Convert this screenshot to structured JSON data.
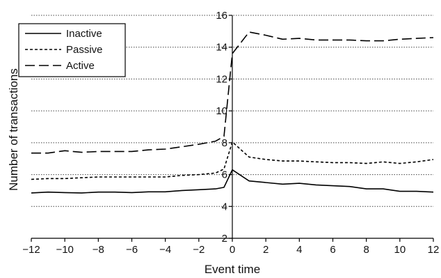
{
  "chart_data": {
    "type": "line",
    "title": "",
    "xlabel": "Event time",
    "ylabel": "Number of transactions",
    "xlim": [
      -12,
      12
    ],
    "ylim": [
      2,
      16
    ],
    "x_ticks": [
      -12,
      -10,
      -8,
      -6,
      -4,
      -2,
      0,
      2,
      4,
      6,
      8,
      10,
      12
    ],
    "y_ticks": [
      2,
      4,
      6,
      8,
      10,
      12,
      14,
      16
    ],
    "x_tick_labels": [
      "−12",
      "−10",
      "−8",
      "−6",
      "−4",
      "−2",
      "0",
      "2",
      "4",
      "6",
      "8",
      "10",
      "12"
    ],
    "y_tick_labels": [
      "2",
      "4",
      "6",
      "8",
      "10",
      "12",
      "14",
      "16"
    ],
    "grid": "horizontal dotted",
    "legend_position": "top-left",
    "x": [
      -12,
      -11,
      -10,
      -9,
      -8,
      -7,
      -6,
      -5,
      -4,
      -3,
      -2,
      -1,
      -0.5,
      0,
      1,
      2,
      3,
      4,
      5,
      6,
      7,
      8,
      9,
      10,
      11,
      12
    ],
    "series": [
      {
        "name": "Inactive",
        "dash": "solid",
        "color": "#000000",
        "values": [
          4.85,
          4.9,
          4.87,
          4.85,
          4.9,
          4.9,
          4.87,
          4.92,
          4.92,
          5.0,
          5.05,
          5.1,
          5.2,
          6.3,
          5.6,
          5.5,
          5.4,
          5.45,
          5.35,
          5.3,
          5.25,
          5.1,
          5.1,
          4.95,
          4.95,
          4.9
        ]
      },
      {
        "name": "Passive",
        "dash": "short",
        "color": "#000000",
        "values": [
          5.7,
          5.75,
          5.75,
          5.8,
          5.85,
          5.85,
          5.85,
          5.85,
          5.85,
          5.95,
          6.0,
          6.1,
          6.35,
          8.05,
          7.1,
          6.95,
          6.85,
          6.85,
          6.8,
          6.75,
          6.75,
          6.7,
          6.8,
          6.7,
          6.8,
          6.95
        ]
      },
      {
        "name": "Active",
        "dash": "long",
        "color": "#000000",
        "values": [
          7.35,
          7.35,
          7.5,
          7.4,
          7.45,
          7.45,
          7.45,
          7.55,
          7.6,
          7.75,
          7.9,
          8.1,
          8.4,
          13.6,
          14.95,
          14.75,
          14.5,
          14.55,
          14.45,
          14.45,
          14.45,
          14.4,
          14.4,
          14.5,
          14.55,
          14.6
        ]
      }
    ]
  }
}
